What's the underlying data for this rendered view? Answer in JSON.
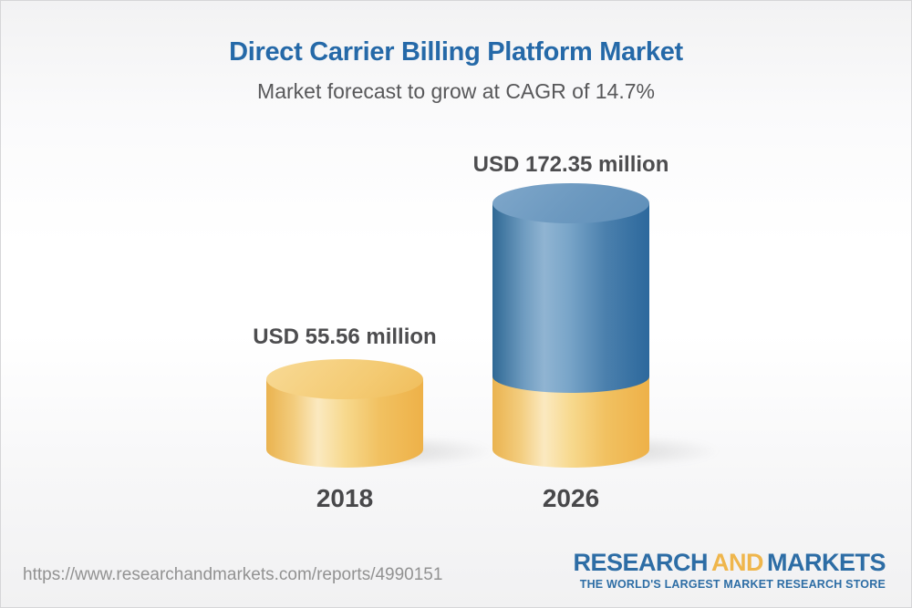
{
  "header": {
    "title": "Direct Carrier Billing Platform Market",
    "subtitle": "Market forecast to grow at CAGR of 14.7%"
  },
  "chart_data": {
    "type": "bar",
    "variant": "3d-cylinder-infographic",
    "title": "Direct Carrier Billing Platform Market",
    "subtitle": "Market forecast to grow at CAGR of 14.7%",
    "categories": [
      "2018",
      "2026"
    ],
    "values": [
      55.56,
      172.35
    ],
    "unit": "USD million",
    "value_labels": [
      "USD 55.56 million",
      "USD 172.35 million"
    ],
    "cagr_pct": 14.7,
    "legend": "none",
    "grid": false,
    "colors": {
      "bar_2018": "#f3c76f",
      "bar_2026_growth_segment": "#4d82b0",
      "bar_2026_base_segment": "#f3c76f",
      "title_blue": "#2569a8",
      "label_gray": "#4d4d4f"
    }
  },
  "footer": {
    "url": "https://www.researchandmarkets.com/reports/4990151",
    "logo": {
      "word1": "RESEARCH",
      "word2": "AND",
      "word3": "MARKETS",
      "tagline": "THE WORLD'S LARGEST MARKET RESEARCH STORE",
      "blue": "#2d6da5",
      "gold": "#efb64c"
    }
  }
}
